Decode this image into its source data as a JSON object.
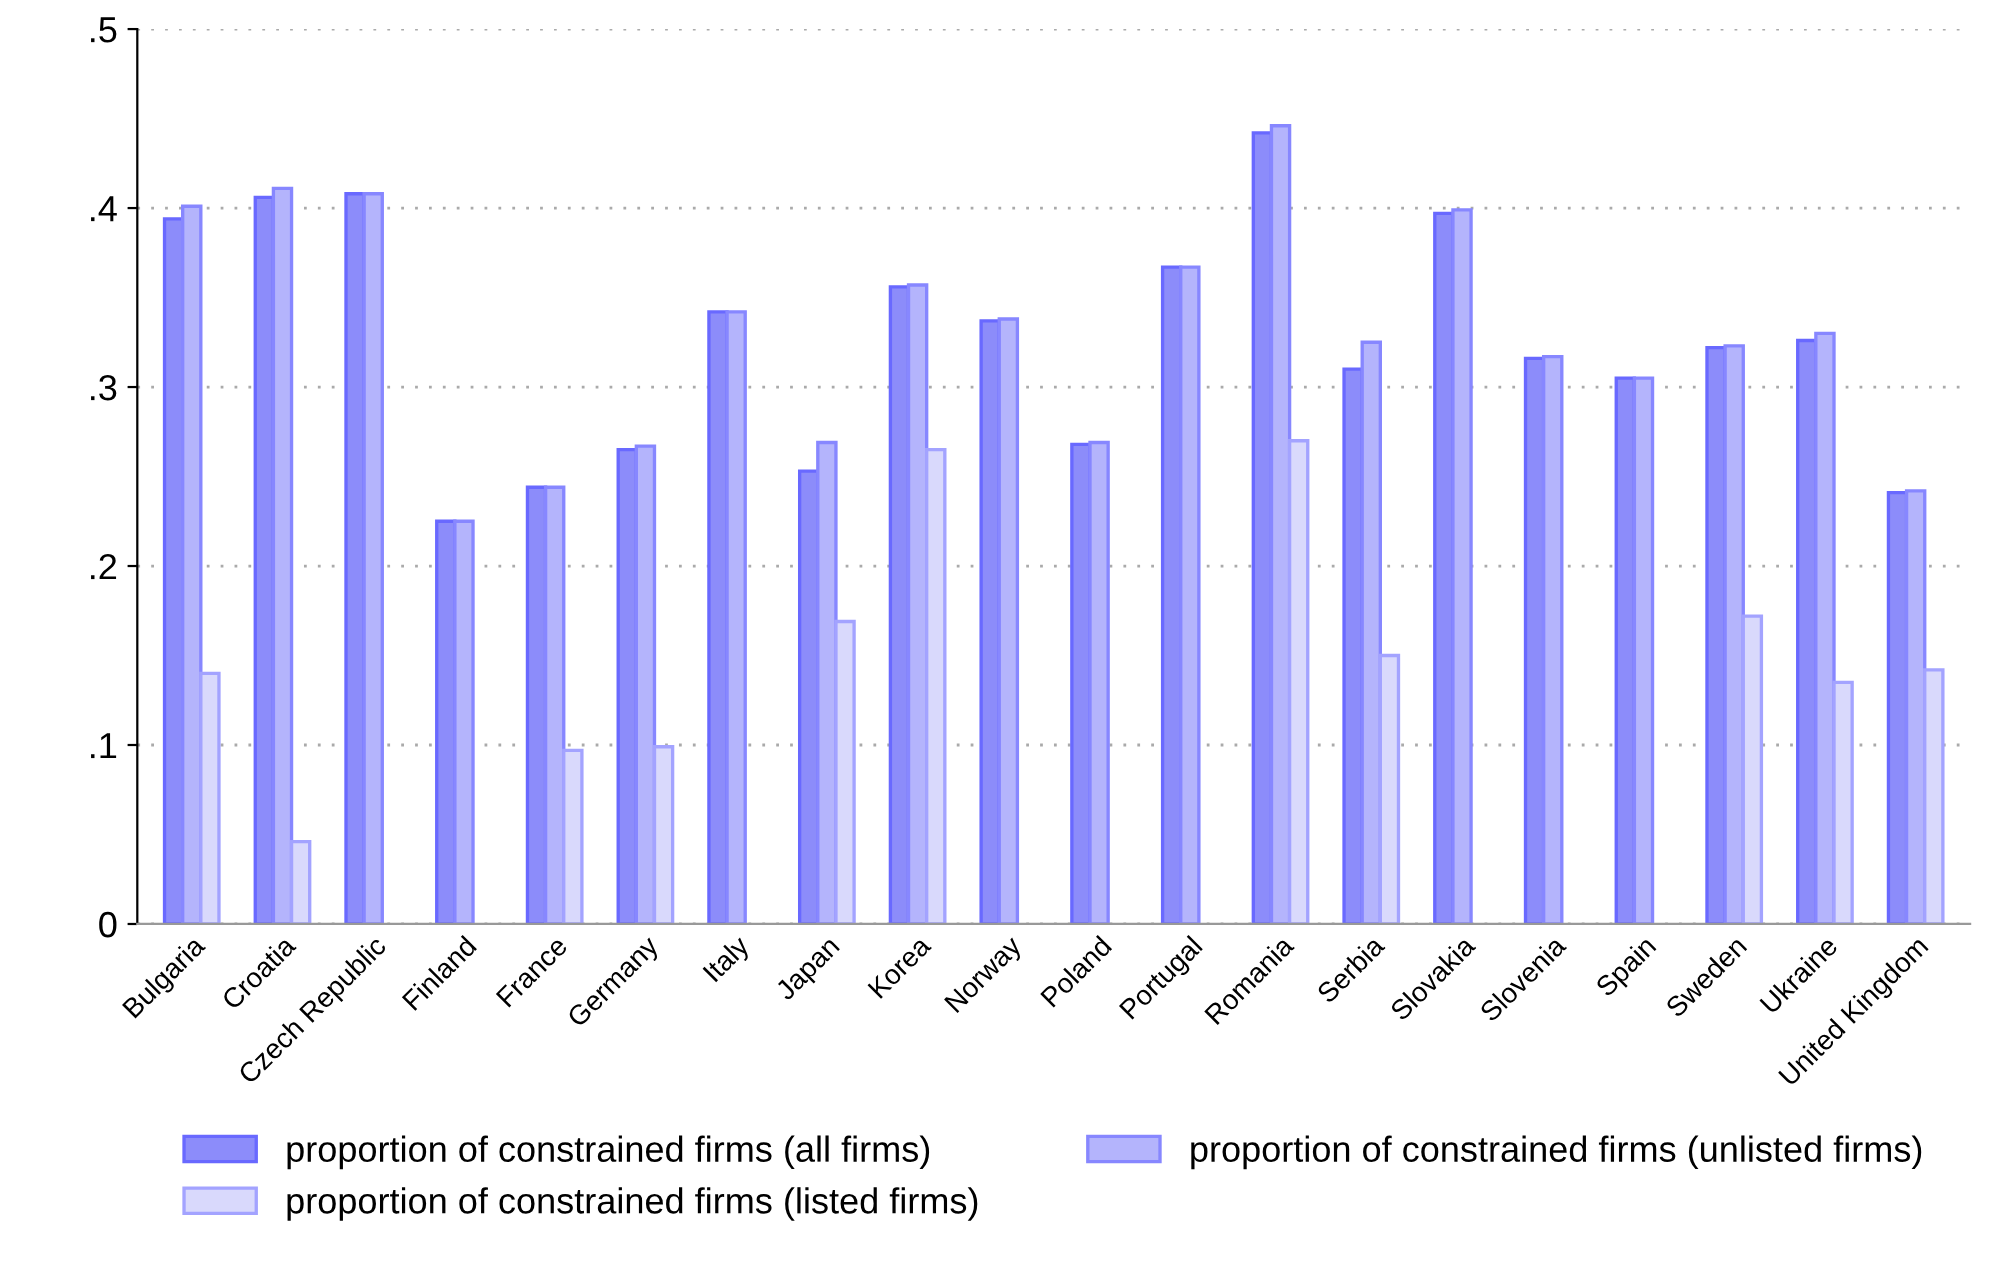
{
  "chart_data": {
    "type": "bar",
    "categories": [
      "Bulgaria",
      "Croatia",
      "Czech Republic",
      "Finland",
      "France",
      "Germany",
      "Italy",
      "Japan",
      "Korea",
      "Norway",
      "Poland",
      "Portugal",
      "Romania",
      "Serbia",
      "Slovakia",
      "Slovenia",
      "Spain",
      "Sweden",
      "Ukraine",
      "United Kingdom"
    ],
    "series": [
      {
        "name": "proportion of constrained firms (all firms)",
        "color": "#8c8cfa",
        "values": [
          0.394,
          0.406,
          0.408,
          0.225,
          0.244,
          0.265,
          0.342,
          0.253,
          0.356,
          0.337,
          0.268,
          0.367,
          0.442,
          0.31,
          0.397,
          0.316,
          0.305,
          0.322,
          0.326,
          0.241
        ]
      },
      {
        "name": "proportion of constrained firms (unlisted firms)",
        "color": "#b4b4fc",
        "values": [
          0.401,
          0.411,
          0.408,
          0.225,
          0.244,
          0.267,
          0.342,
          0.269,
          0.357,
          0.338,
          0.269,
          0.367,
          0.446,
          0.325,
          0.399,
          0.317,
          0.305,
          0.323,
          0.33,
          0.242
        ]
      },
      {
        "name": "proportion of constrained firms (listed firms)",
        "color": "#d9d9fc",
        "values": [
          0.14,
          0.046,
          null,
          null,
          0.097,
          0.099,
          null,
          0.169,
          0.265,
          null,
          null,
          null,
          0.27,
          0.15,
          null,
          null,
          null,
          0.172,
          0.135,
          0.142
        ]
      }
    ],
    "ylim": [
      0,
      0.5
    ],
    "yticks": [
      0,
      {
        "value": 0.1,
        "label": ".1"
      },
      {
        "value": 0.2,
        "label": ".2"
      },
      {
        "value": 0.3,
        "label": ".3"
      },
      {
        "value": 0.4,
        "label": ".4"
      },
      {
        "value": 0.5,
        "label": ".5"
      }
    ],
    "grid": "y",
    "legend": "bottom"
  }
}
